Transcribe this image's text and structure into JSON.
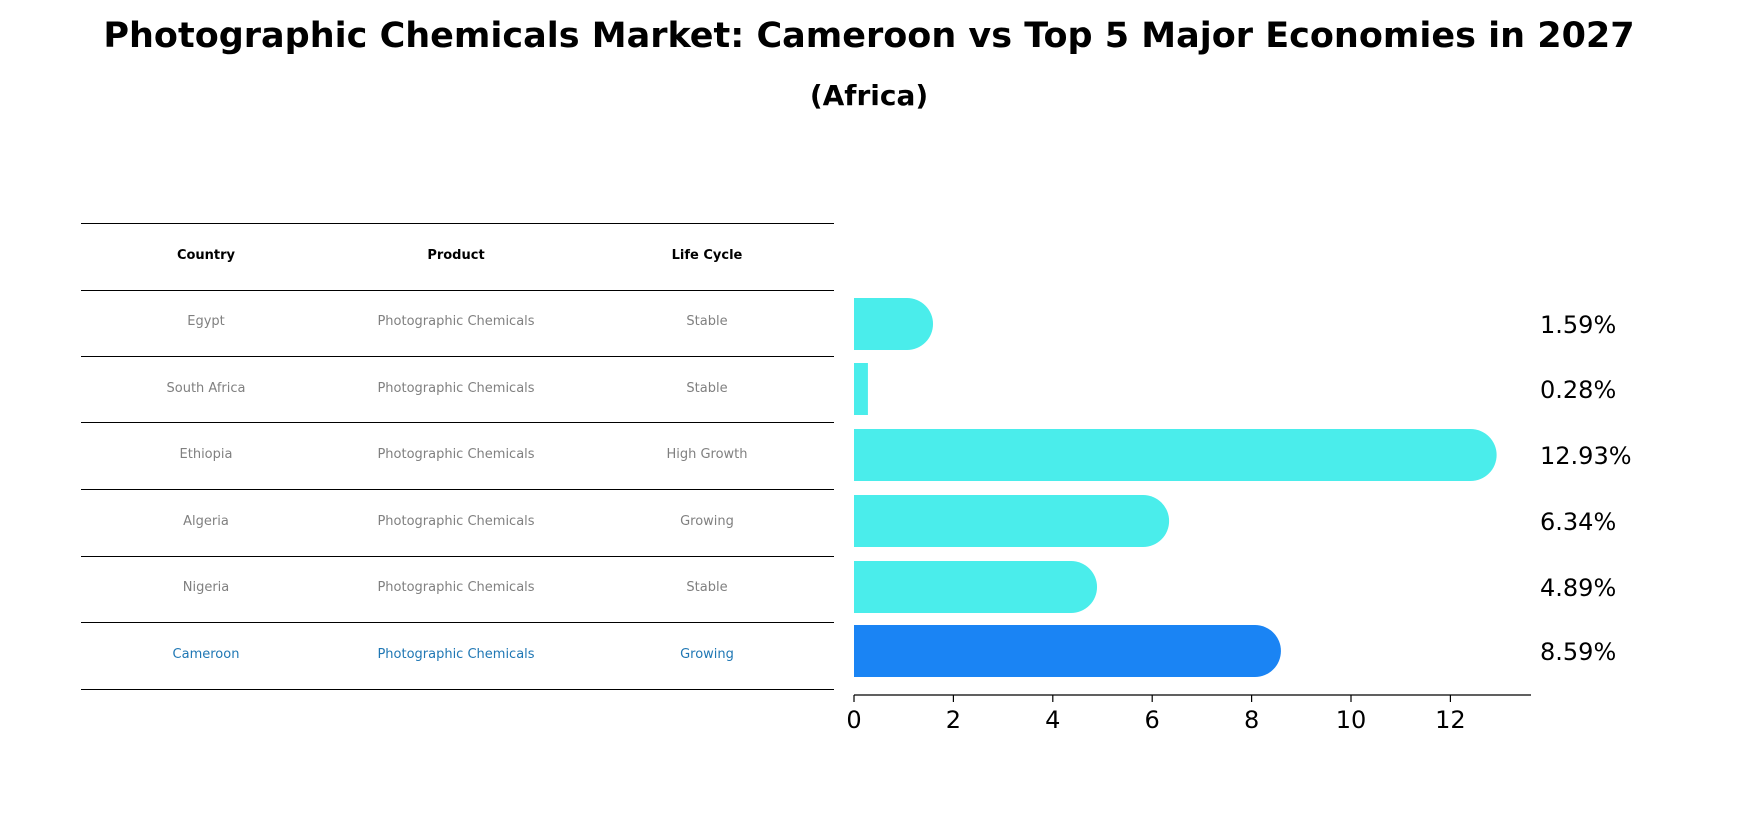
{
  "title": "Photographic Chemicals Market: Cameroon vs Top 5 Major Economies in 2027",
  "subtitle": "(Africa)",
  "table": {
    "headers": [
      "Country",
      "Product",
      "Life Cycle"
    ],
    "rows": [
      [
        "Egypt",
        "Photographic Chemicals",
        "Stable"
      ],
      [
        "South Africa",
        "Photographic Chemicals",
        "Stable"
      ],
      [
        "Ethiopia",
        "Photographic Chemicals",
        "High Growth"
      ],
      [
        "Algeria",
        "Photographic Chemicals",
        "Growing"
      ],
      [
        "Nigeria",
        "Photographic Chemicals",
        "Stable"
      ],
      [
        "Cameroon",
        "Photographic Chemicals",
        "Growing"
      ]
    ],
    "highlight_row": 5
  },
  "chart_data": {
    "type": "bar",
    "orientation": "horizontal",
    "categories": [
      "Egypt",
      "South Africa",
      "Ethiopia",
      "Algeria",
      "Nigeria",
      "Cameroon"
    ],
    "values": [
      1.59,
      0.28,
      12.93,
      6.34,
      4.89,
      8.59
    ],
    "value_labels": [
      "1.59%",
      "0.28%",
      "12.93%",
      "6.34%",
      "4.89%",
      "8.59%"
    ],
    "xticks": [
      0,
      2,
      4,
      6,
      8,
      10,
      12
    ],
    "colors": {
      "default": "#4aedeb",
      "highlight": "#1a84f4",
      "highlight_index": 5
    },
    "grid": false
  }
}
